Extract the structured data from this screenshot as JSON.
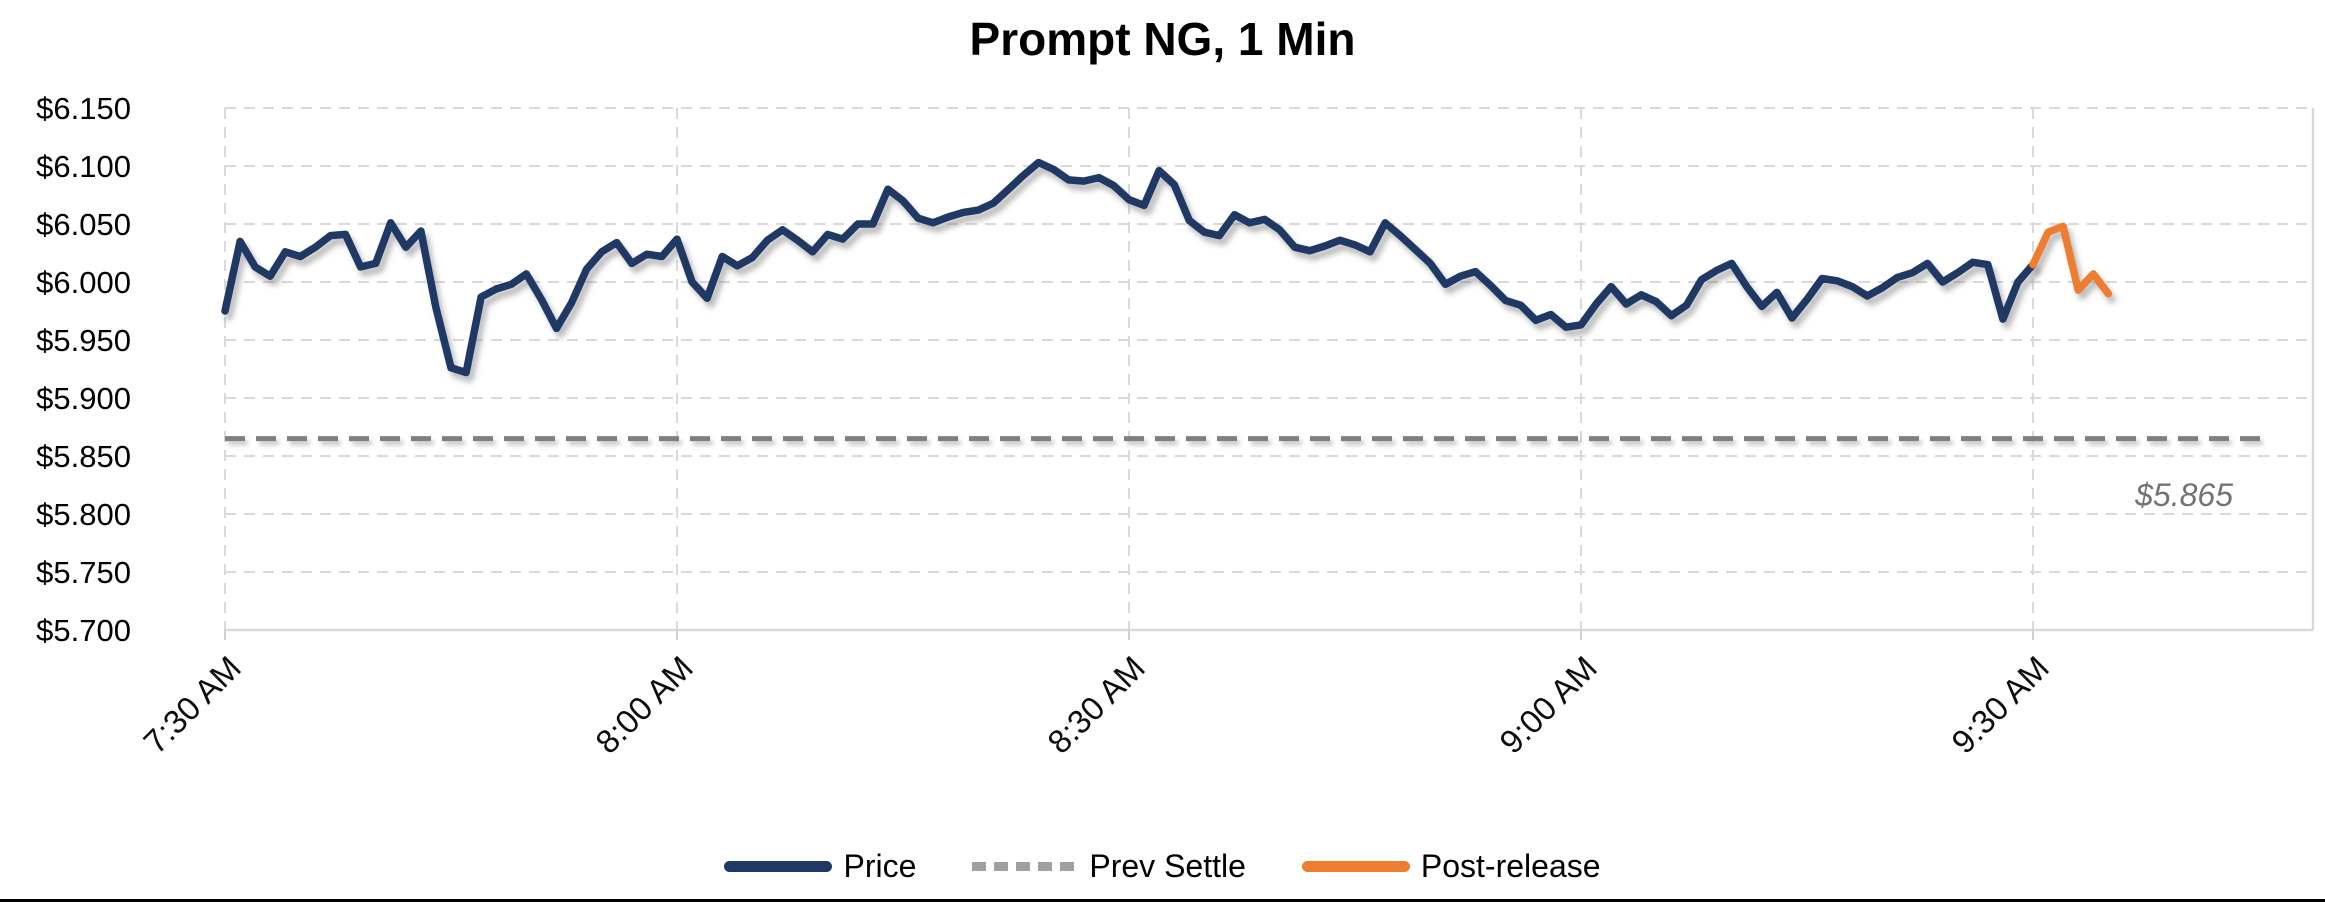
{
  "chart_data": {
    "type": "line",
    "title": "Prompt NG, 1 Min",
    "x_axis": {
      "tick_labels": [
        "7:30 AM",
        "8:00 AM",
        "8:30 AM",
        "9:00 AM",
        "9:30 AM"
      ],
      "tick_minutes": [
        0,
        30,
        60,
        90,
        120
      ],
      "minutes_start": 0,
      "minutes_end": 138.6,
      "grid": "dashed"
    },
    "y_axis": {
      "tick_labels": [
        "$6.150",
        "$6.100",
        "$6.050",
        "$6.000",
        "$5.950",
        "$5.900",
        "$5.850",
        "$5.800",
        "$5.750",
        "$5.700"
      ],
      "tick_values": [
        6.15,
        6.1,
        6.05,
        6.0,
        5.95,
        5.9,
        5.85,
        5.8,
        5.75,
        5.7
      ],
      "min": 5.7,
      "max": 6.15,
      "grid": "dashed"
    },
    "series": [
      {
        "name": "Price",
        "type": "line",
        "color": "#1f3864",
        "start_minute": 0,
        "step_minutes": 1,
        "values": [
          5.975,
          6.035,
          6.013,
          6.005,
          6.026,
          6.022,
          6.03,
          6.04,
          6.041,
          6.013,
          6.016,
          6.051,
          6.03,
          6.044,
          5.978,
          5.926,
          5.922,
          5.987,
          5.994,
          5.998,
          6.007,
          5.985,
          5.96,
          5.982,
          6.011,
          6.026,
          6.034,
          6.016,
          6.024,
          6.022,
          6.037,
          6.0,
          5.986,
          6.022,
          6.014,
          6.021,
          6.036,
          6.045,
          6.036,
          6.026,
          6.041,
          6.037,
          6.05,
          6.05,
          6.08,
          6.07,
          6.055,
          6.051,
          6.056,
          6.06,
          6.062,
          6.068,
          6.08,
          6.092,
          6.103,
          6.097,
          6.088,
          6.087,
          6.09,
          6.083,
          6.071,
          6.066,
          6.096,
          6.084,
          6.053,
          6.043,
          6.04,
          6.058,
          6.051,
          6.054,
          6.045,
          6.03,
          6.027,
          6.031,
          6.036,
          6.032,
          6.026,
          6.051,
          6.04,
          6.028,
          6.016,
          5.998,
          6.005,
          6.009,
          5.997,
          5.984,
          5.98,
          5.967,
          5.972,
          5.961,
          5.963,
          5.981,
          5.996,
          5.981,
          5.989,
          5.983,
          5.971,
          5.98,
          6.002,
          6.01,
          6.016,
          5.996,
          5.979,
          5.991,
          5.969,
          5.985,
          6.003,
          6.001,
          5.996,
          5.988,
          5.995,
          6.004,
          6.008,
          6.016,
          6.0,
          6.008,
          6.017,
          6.015,
          5.968,
          6.0,
          6.015
        ]
      },
      {
        "name": "Post-release",
        "type": "line",
        "color": "#ed7d31",
        "start_minute": 120,
        "step_minutes": 1,
        "values": [
          6.015,
          6.043,
          6.048,
          5.993,
          6.007,
          5.99
        ]
      },
      {
        "name": "Prev Settle",
        "type": "reference-line",
        "style": "dashed",
        "color": "#7f7f7f",
        "value": 5.865,
        "start_minute": 0,
        "end_minute": 135.2
      }
    ],
    "annotation": {
      "text": "$5.865",
      "value": 5.865,
      "color": "#737373"
    },
    "legend": [
      {
        "label": "Price",
        "color": "#1f3864",
        "style": "solid"
      },
      {
        "label": "Prev Settle",
        "color": "#a0a0a0",
        "style": "dashed"
      },
      {
        "label": "Post-release",
        "color": "#ed7d31",
        "style": "solid"
      }
    ],
    "grid_color": "#d9d9d9",
    "background": "#ffffff"
  }
}
